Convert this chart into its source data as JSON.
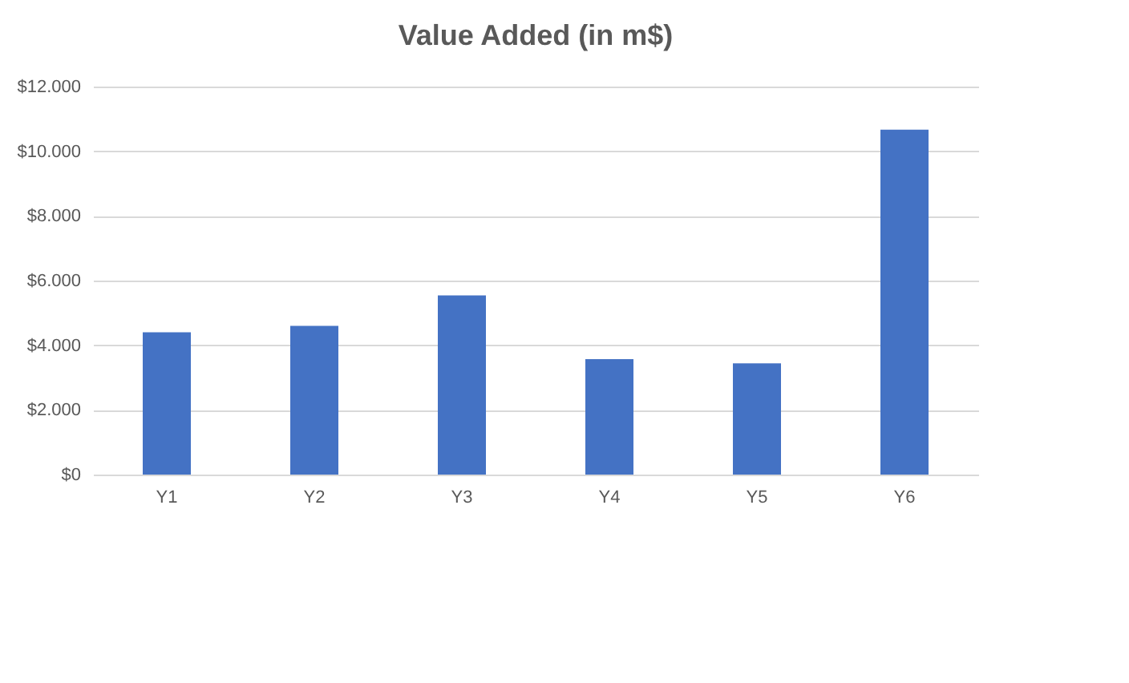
{
  "chart_data": {
    "type": "bar",
    "title": "Value Added (in m$)",
    "categories": [
      "Y1",
      "Y2",
      "Y3",
      "Y4",
      "Y5",
      "Y6"
    ],
    "series": [
      {
        "color": "#4472c4",
        "values": [
          4400,
          4600,
          5540,
          3570,
          3440,
          10670
        ]
      }
    ],
    "ylim": [
      0,
      12000
    ],
    "yticks": [
      {
        "value": 0,
        "label": "$0"
      },
      {
        "value": 2000,
        "label": "$2.000"
      },
      {
        "value": 4000,
        "label": "$4.000"
      },
      {
        "value": 6000,
        "label": "$6.000"
      },
      {
        "value": 8000,
        "label": "$8.000"
      },
      {
        "value": 10000,
        "label": "$10.000"
      },
      {
        "value": 12000,
        "label": "$12.000"
      }
    ],
    "grid": "y",
    "legend": false
  }
}
